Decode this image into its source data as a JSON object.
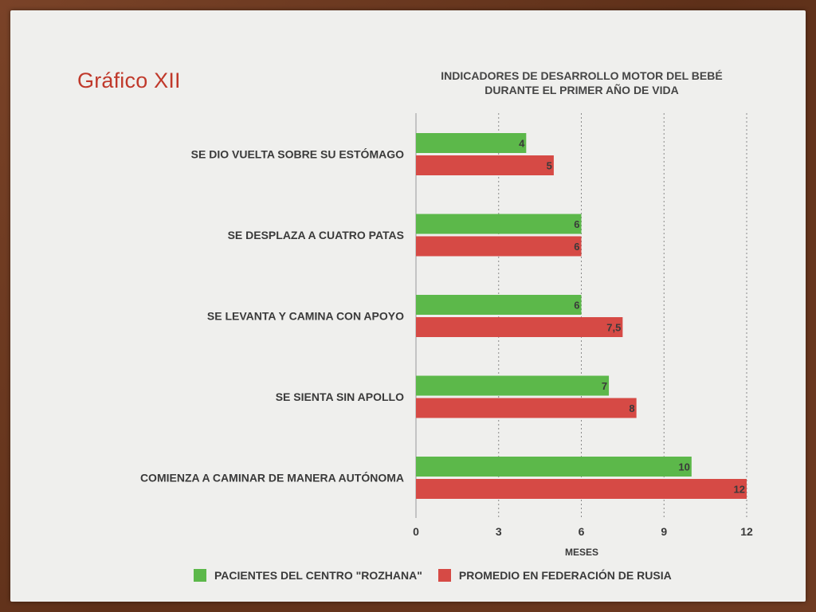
{
  "slide": {
    "title": "Gráfico XII"
  },
  "chart_data": {
    "type": "bar",
    "orientation": "horizontal",
    "title_line1": "INDICADORES DE DESARROLLO MOTOR DEL BEBÉ",
    "title_line2": "DURANTE EL PRIMER AÑO DE VIDA",
    "xlabel": "MESES",
    "ylabel": "",
    "xlim": [
      0,
      12
    ],
    "ticks": [
      0,
      3,
      6,
      9,
      12
    ],
    "grid": "vertical dotted",
    "legend_position": "bottom",
    "categories": [
      "SE DIO VUELTA SOBRE SU ESTÓMAGO",
      "SE DESPLAZA A CUATRO PATAS",
      "SE LEVANTA Y CAMINA CON APOYO",
      "SE SIENTA SIN APOLLO",
      "COMIENZA A CAMINAR DE MANERA AUTÓNOMA"
    ],
    "series": [
      {
        "name": "PACIENTES DEL CENTRO \"ROZHANA\"",
        "color": "#5cb84a",
        "values": [
          4,
          6,
          6,
          7,
          10
        ],
        "labels": [
          "4",
          "6",
          "6",
          "7",
          "10"
        ]
      },
      {
        "name": "PROMEDIO EN FEDERACIÓN DE RUSIA",
        "color": "#d64a45",
        "values": [
          5,
          6,
          7.5,
          8,
          12
        ],
        "labels": [
          "5",
          "6",
          "7,5",
          "8",
          "12"
        ]
      }
    ]
  }
}
